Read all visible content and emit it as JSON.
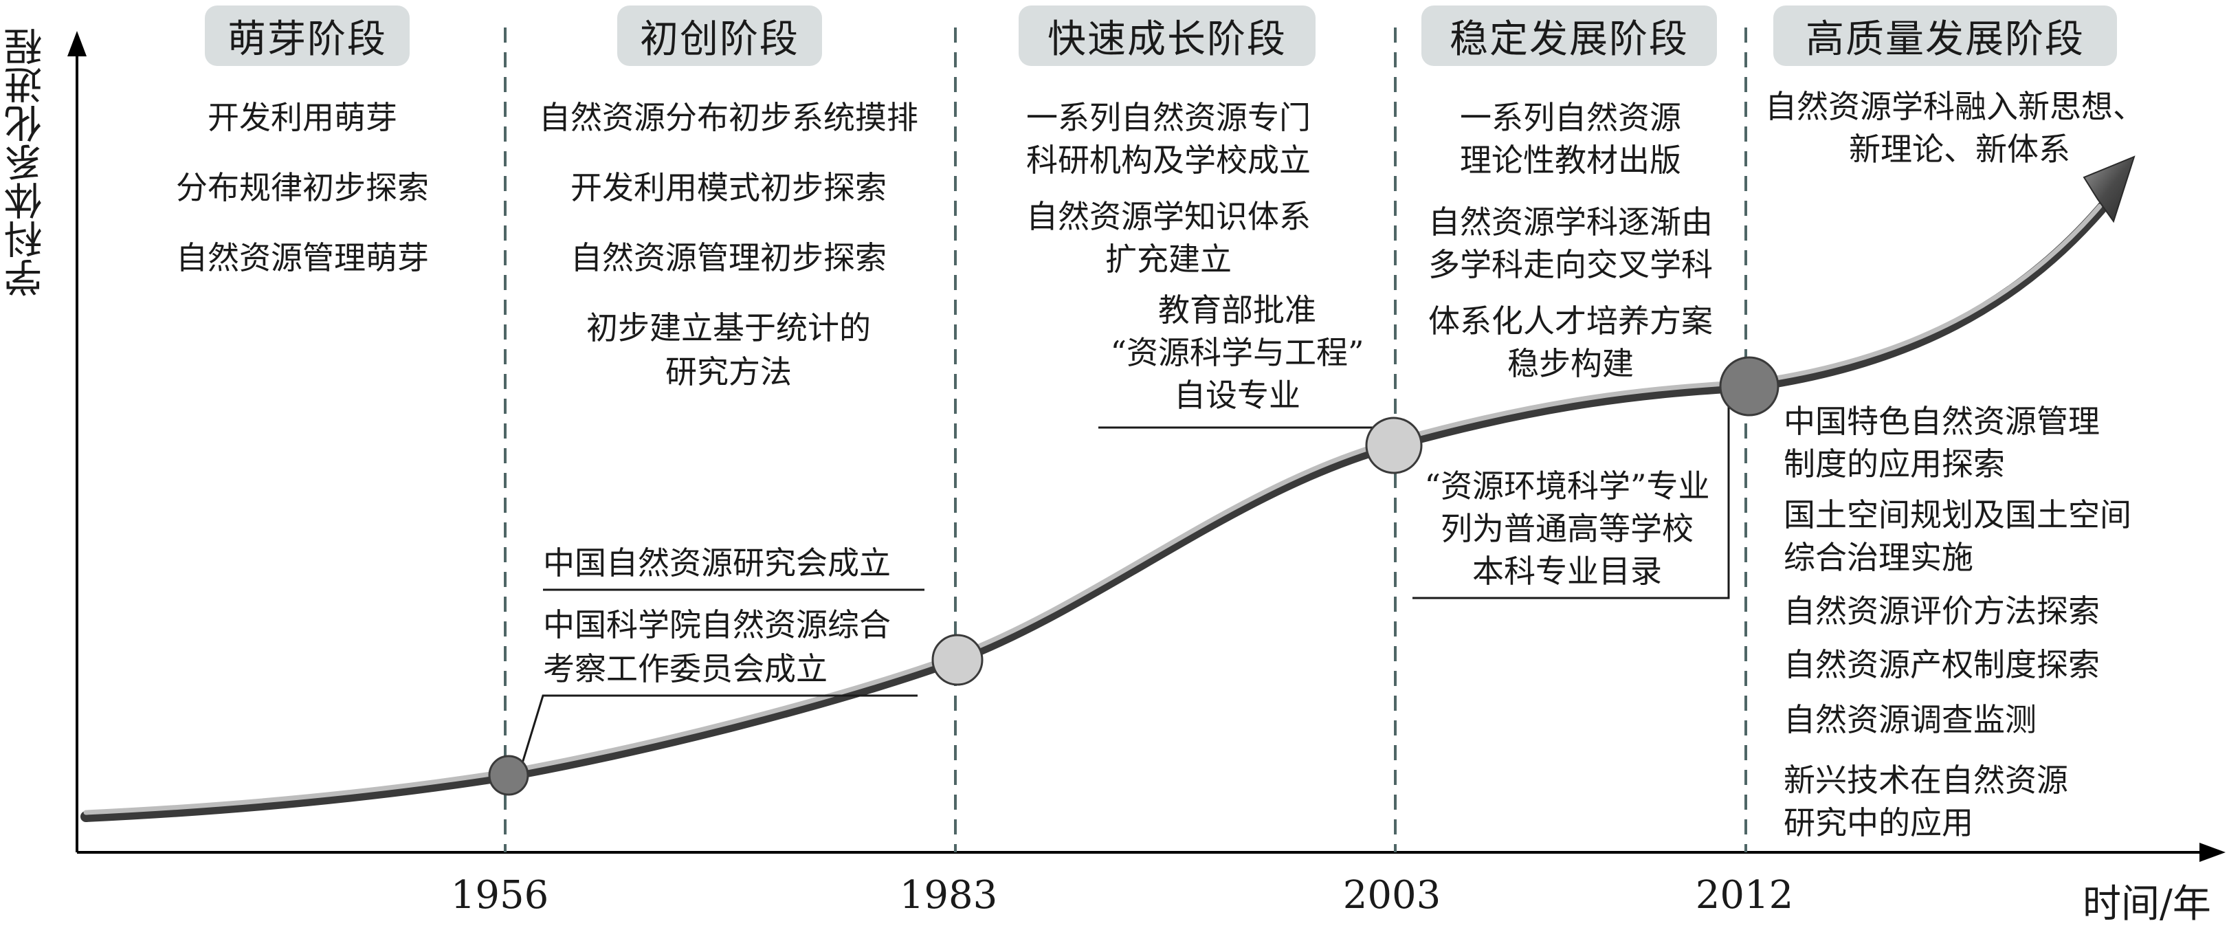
{
  "axes": {
    "y_label": "学科体系化进程",
    "x_label": "时间/年"
  },
  "stages": [
    {
      "label": "萌芽阶段"
    },
    {
      "label": "初创阶段"
    },
    {
      "label": "快速成长阶段"
    },
    {
      "label": "稳定发展阶段"
    },
    {
      "label": "高质量发展阶段"
    }
  ],
  "years": [
    "1956",
    "1983",
    "2003",
    "2012"
  ],
  "stage1": {
    "items": [
      "开发利用萌芽",
      "分布规律初步探索",
      "自然资源管理萌芽"
    ]
  },
  "stage2": {
    "items": [
      "自然资源分布初步系统摸排",
      "开发利用模式初步探索",
      "自然资源管理初步探索",
      "初步建立基于统计的",
      "研究方法"
    ],
    "milestone_a": "中国自然资源研究会成立",
    "milestone_b_1": "中国科学院自然资源综合",
    "milestone_b_2": "考察工作委员会成立"
  },
  "stage3": {
    "items": [
      "一系列自然资源专门",
      "科研机构及学校成立",
      "自然资源学知识体系",
      "扩充建立"
    ],
    "milestone_1": "教育部批准",
    "milestone_2": "“资源科学与工程”",
    "milestone_3": "自设专业"
  },
  "stage4": {
    "items": [
      "一系列自然资源",
      "理论性教材出版",
      "自然资源学科逐渐由",
      "多学科走向交叉学科",
      "体系化人才培养方案",
      "稳步构建"
    ],
    "milestone_1": "“资源环境科学”专业",
    "milestone_2": "列为普通高等学校",
    "milestone_3": "本科专业目录"
  },
  "stage5": {
    "top_1": "自然资源学科融入新思想、",
    "top_2": "新理论、新体系",
    "items": [
      "中国特色自然资源管理",
      "制度的应用探索",
      "国土空间规划及国土空间",
      "综合治理实施",
      "自然资源评价方法探索",
      "自然资源产权制度探索",
      "自然资源调查监测",
      "新兴技术在自然资源",
      "研究中的应用"
    ]
  },
  "colors": {
    "stage_bg": "#d9dedf",
    "curve_dark": "#3a3a3a",
    "curve_light": "#bdbdbd",
    "node_dark": "#7a7a7a",
    "node_light": "#cfcfcf",
    "divider": "#4f6666"
  }
}
